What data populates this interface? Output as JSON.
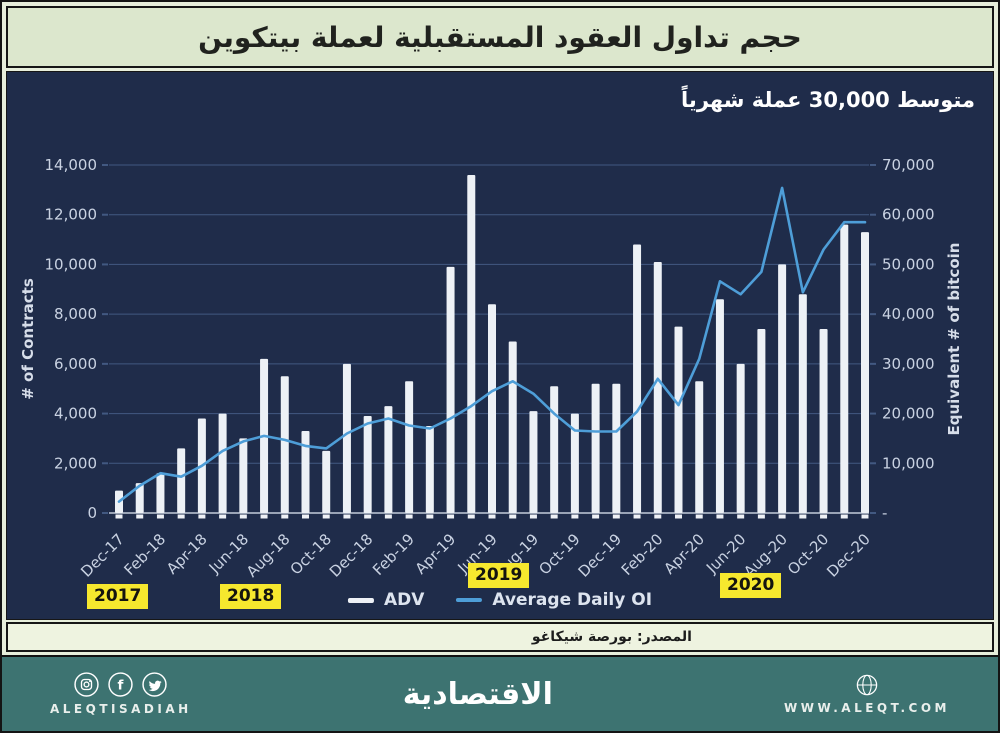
{
  "title_bar": {
    "title": "حجم تداول العقود المستقبلية لعملة بيتكوين"
  },
  "chart": {
    "annotation": "متوسط  30,000 عملة شهرياً",
    "background_color": "#1f2c4a"
  },
  "source": {
    "text": "المصدر: بورصة شيكاغو"
  },
  "footer": {
    "background_color": "#3d7371",
    "brand_arabic": "الاقتصادية",
    "brand_latin": "ALEQTISADIAH",
    "website": "WWW.ALEQT.COM",
    "social_icons": [
      "instagram-icon",
      "facebook-icon",
      "twitter-icon"
    ],
    "globe_icon": "globe-icon"
  },
  "chart_data": {
    "type": "bar",
    "note": "combo chart: bar series on left axis + line series on right axis",
    "x": [
      "Dec-17",
      "Jan-18",
      "Feb-18",
      "Mar-18",
      "Apr-18",
      "May-18",
      "Jun-18",
      "Jul-18",
      "Aug-18",
      "Sep-18",
      "Oct-18",
      "Nov-18",
      "Dec-18",
      "Jan-19",
      "Feb-19",
      "Mar-19",
      "Apr-19",
      "May-19",
      "Jun-19",
      "Jul-19",
      "Aug-19",
      "Sep-19",
      "Oct-19",
      "Nov-19",
      "Dec-19",
      "Jan-20",
      "Feb-20",
      "Mar-20",
      "Apr-20",
      "May-20",
      "Jun-20",
      "Jul-20",
      "Aug-20",
      "Sep-20",
      "Oct-20",
      "Nov-20",
      "Dec-20"
    ],
    "x_tick_every": 2,
    "series": [
      {
        "name": "ADV",
        "type": "bar",
        "axis": "left",
        "color": "#edf1f6",
        "values": [
          900,
          1200,
          1600,
          2600,
          3800,
          4000,
          3000,
          6200,
          5500,
          3300,
          2500,
          6000,
          3900,
          4300,
          5300,
          3500,
          9900,
          13600,
          8400,
          6900,
          4100,
          5100,
          4000,
          5200,
          5200,
          10800,
          10100,
          7500,
          5300,
          8600,
          6000,
          7400,
          10000,
          8800,
          7400,
          11600,
          11300
        ]
      },
      {
        "name": "Average Daily OI",
        "type": "line",
        "axis": "right",
        "color": "#4e9ed8",
        "values": [
          2300,
          5500,
          8000,
          7300,
          9500,
          12500,
          14400,
          15500,
          14700,
          13500,
          13000,
          16000,
          18000,
          19000,
          17600,
          17000,
          19000,
          21500,
          24500,
          26500,
          24000,
          20000,
          16600,
          16400,
          16400,
          20400,
          27000,
          21700,
          31000,
          46600,
          44000,
          48500,
          65400,
          44400,
          53000,
          58500,
          58500
        ]
      }
    ],
    "left_axis": {
      "label": "# of Contracts",
      "min": 0,
      "max": 14000,
      "tick_step": 2000,
      "tick_labels": [
        "0",
        "2,000",
        "4,000",
        "6,000",
        "8,000",
        "10,000",
        "12,000",
        "14,000"
      ]
    },
    "right_axis": {
      "label": "Equivalent # of bitcoin",
      "min": 0,
      "max": 70000,
      "tick_step": 10000,
      "tick_labels": [
        "-",
        "10,000",
        "20,000",
        "30,000",
        "40,000",
        "50,000",
        "60,000",
        "70,000"
      ]
    },
    "grid": true,
    "legend_position": "bottom",
    "year_markers": [
      "2017",
      "2018",
      "2019",
      "2020"
    ],
    "highlight_color": "#f6e82e"
  }
}
